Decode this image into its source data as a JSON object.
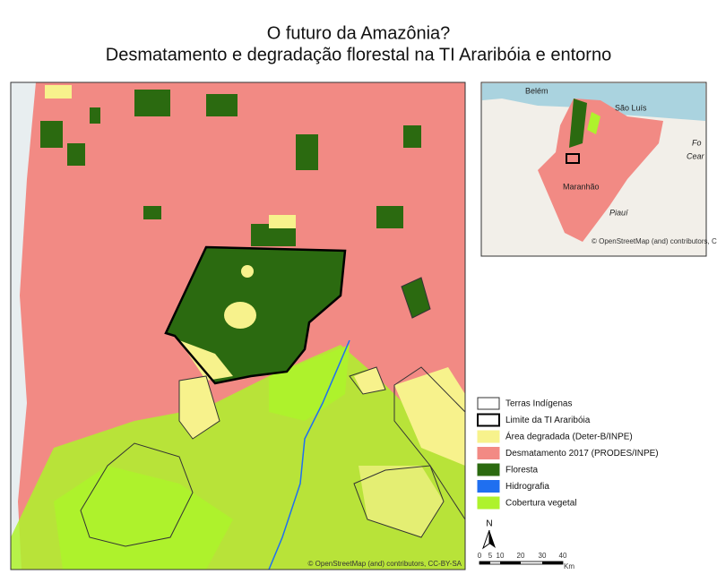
{
  "title": {
    "line1": "O futuro da Amazônia?",
    "line2": "Desmatamento e degradação florestal na TI Araribóia e entorno"
  },
  "legend": {
    "items": [
      {
        "label": "Terras Indígenas",
        "color": "#ffffff",
        "outline": "#333333"
      },
      {
        "label": "Limite da TI Araribóia",
        "color": "#ffffff",
        "outline": "#000000"
      },
      {
        "label": "Área degradada (Deter-B/INPE)",
        "color": "#f7f28c",
        "outline": "#f7f28c"
      },
      {
        "label": "Desmatamento 2017 (PRODES/INPE)",
        "color": "#f28a84",
        "outline": "#f28a84"
      },
      {
        "label": "Floresta",
        "color": "#2b6a10",
        "outline": "#2b6a10"
      },
      {
        "label": "Hidrografia",
        "color": "#1f6ff0",
        "outline": "#1f6ff0"
      },
      {
        "label": "Cobertura vegetal",
        "color": "#aef22c",
        "outline": "#aef22c"
      }
    ]
  },
  "map": {
    "attribution": "© OpenStreetMap (and) contributors, CC-BY-SA",
    "north": "N",
    "scale": {
      "labels": [
        "0",
        "5",
        "10",
        "20",
        "30",
        "40"
      ],
      "unit": "Km"
    }
  },
  "inset": {
    "labels": [
      "Belém",
      "São Luís",
      "Maranhão",
      "Piauí",
      "Fo",
      "Cear"
    ],
    "attribution": "© OpenStreetMap (and) contributors, CC-BY-SA"
  }
}
